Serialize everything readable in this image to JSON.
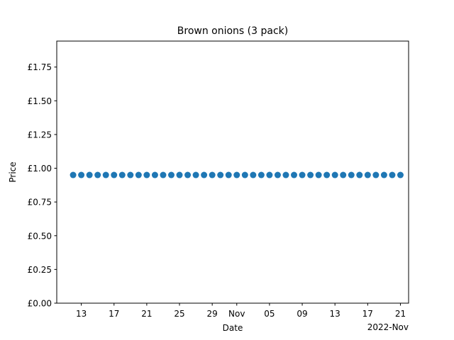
{
  "chart_data": {
    "type": "scatter",
    "title": "Brown onions (3 pack)",
    "xlabel": "Date",
    "ylabel": "Price",
    "x_offset_label": "2022-Nov",
    "xlim": [
      "2022-10-10",
      "2022-11-22"
    ],
    "ylim": [
      0,
      1.9425
    ],
    "y_ticks": [
      {
        "value": 0.0,
        "label": "£0.00"
      },
      {
        "value": 0.25,
        "label": "£0.25"
      },
      {
        "value": 0.5,
        "label": "£0.50"
      },
      {
        "value": 0.75,
        "label": "£0.75"
      },
      {
        "value": 1.0,
        "label": "£1.00"
      },
      {
        "value": 1.25,
        "label": "£1.25"
      },
      {
        "value": 1.5,
        "label": "£1.50"
      },
      {
        "value": 1.75,
        "label": "£1.75"
      }
    ],
    "x_ticks": [
      {
        "value": "2022-10-13",
        "label": "13"
      },
      {
        "value": "2022-10-17",
        "label": "17"
      },
      {
        "value": "2022-10-21",
        "label": "21"
      },
      {
        "value": "2022-10-25",
        "label": "25"
      },
      {
        "value": "2022-10-29",
        "label": "29"
      },
      {
        "value": "2022-11-01",
        "label": "Nov"
      },
      {
        "value": "2022-11-05",
        "label": "05"
      },
      {
        "value": "2022-11-09",
        "label": "09"
      },
      {
        "value": "2022-11-13",
        "label": "13"
      },
      {
        "value": "2022-11-17",
        "label": "17"
      },
      {
        "value": "2022-11-21",
        "label": "21"
      }
    ],
    "series": [
      {
        "color": "#1f77b4",
        "points": [
          {
            "x": "2022-10-12",
            "y": 0.95
          },
          {
            "x": "2022-10-13",
            "y": 0.95
          },
          {
            "x": "2022-10-14",
            "y": 0.95
          },
          {
            "x": "2022-10-15",
            "y": 0.95
          },
          {
            "x": "2022-10-16",
            "y": 0.95
          },
          {
            "x": "2022-10-17",
            "y": 0.95
          },
          {
            "x": "2022-10-18",
            "y": 0.95
          },
          {
            "x": "2022-10-19",
            "y": 0.95
          },
          {
            "x": "2022-10-20",
            "y": 0.95
          },
          {
            "x": "2022-10-21",
            "y": 0.95
          },
          {
            "x": "2022-10-22",
            "y": 0.95
          },
          {
            "x": "2022-10-23",
            "y": 0.95
          },
          {
            "x": "2022-10-24",
            "y": 0.95
          },
          {
            "x": "2022-10-25",
            "y": 0.95
          },
          {
            "x": "2022-10-26",
            "y": 0.95
          },
          {
            "x": "2022-10-27",
            "y": 0.95
          },
          {
            "x": "2022-10-28",
            "y": 0.95
          },
          {
            "x": "2022-10-29",
            "y": 0.95
          },
          {
            "x": "2022-10-30",
            "y": 0.95
          },
          {
            "x": "2022-10-31",
            "y": 0.95
          },
          {
            "x": "2022-11-01",
            "y": 0.95
          },
          {
            "x": "2022-11-02",
            "y": 0.95
          },
          {
            "x": "2022-11-03",
            "y": 0.95
          },
          {
            "x": "2022-11-04",
            "y": 0.95
          },
          {
            "x": "2022-11-05",
            "y": 0.95
          },
          {
            "x": "2022-11-06",
            "y": 0.95
          },
          {
            "x": "2022-11-07",
            "y": 0.95
          },
          {
            "x": "2022-11-08",
            "y": 0.95
          },
          {
            "x": "2022-11-09",
            "y": 0.95
          },
          {
            "x": "2022-11-10",
            "y": 0.95
          },
          {
            "x": "2022-11-11",
            "y": 0.95
          },
          {
            "x": "2022-11-12",
            "y": 0.95
          },
          {
            "x": "2022-11-13",
            "y": 0.95
          },
          {
            "x": "2022-11-14",
            "y": 0.95
          },
          {
            "x": "2022-11-15",
            "y": 0.95
          },
          {
            "x": "2022-11-16",
            "y": 0.95
          },
          {
            "x": "2022-11-17",
            "y": 0.95
          },
          {
            "x": "2022-11-18",
            "y": 0.95
          },
          {
            "x": "2022-11-19",
            "y": 0.95
          },
          {
            "x": "2022-11-20",
            "y": 0.95
          },
          {
            "x": "2022-11-21",
            "y": 0.95
          }
        ]
      }
    ],
    "grid": false,
    "legend": "none"
  }
}
